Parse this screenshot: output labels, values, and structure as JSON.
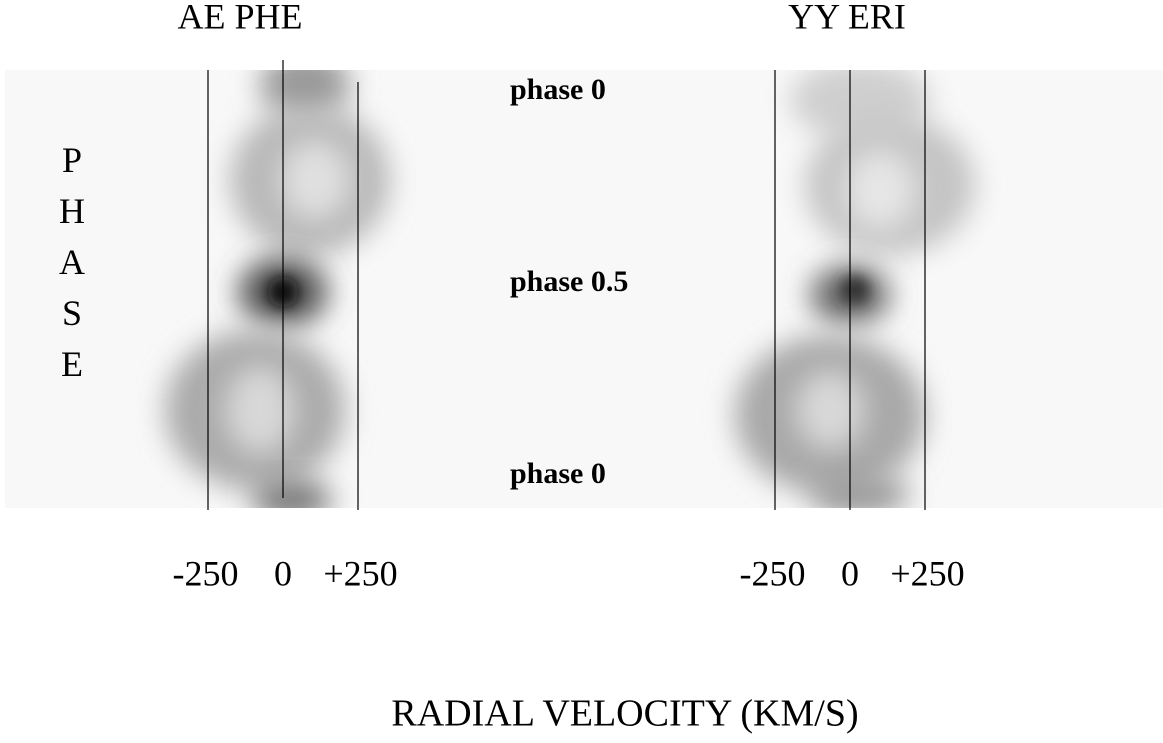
{
  "panels": [
    {
      "title": "AE PHE",
      "xticks": [
        -250,
        0,
        {
          "value": 250,
          "label": "+250"
        }
      ]
    },
    {
      "title": "YY ERI",
      "xticks": [
        -250,
        0,
        {
          "value": 250,
          "label": "+250"
        }
      ]
    }
  ],
  "y_label": "PHASE",
  "phase_labels": [
    "phase 0",
    "phase 0.5",
    "phase 0"
  ],
  "x_label": "RADIAL VELOCITY (KM/S)"
}
